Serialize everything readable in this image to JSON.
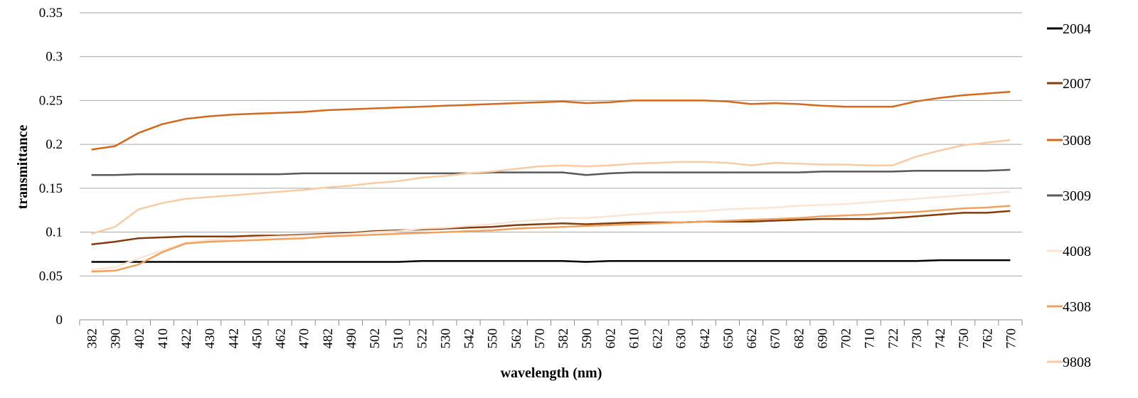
{
  "chart_data": {
    "type": "line",
    "title": "",
    "xlabel": "wavelength (nm)",
    "ylabel": "transmittance",
    "ylim": [
      0,
      0.35
    ],
    "yticks": [
      "0",
      "0.05",
      "0.1",
      "0.15",
      "0.2",
      "0.25",
      "0.3",
      "0.35"
    ],
    "grid": "horizontal",
    "legend_position": "right",
    "categories": [
      "382",
      "390",
      "402",
      "410",
      "422",
      "430",
      "442",
      "450",
      "462",
      "470",
      "482",
      "490",
      "502",
      "510",
      "522",
      "530",
      "542",
      "550",
      "562",
      "570",
      "582",
      "590",
      "602",
      "610",
      "622",
      "630",
      "642",
      "650",
      "662",
      "670",
      "682",
      "690",
      "702",
      "710",
      "722",
      "730",
      "742",
      "750",
      "762",
      "770"
    ],
    "series": [
      {
        "name": "2004",
        "color": "#000000",
        "values": [
          0.066,
          0.066,
          0.066,
          0.066,
          0.066,
          0.066,
          0.066,
          0.066,
          0.066,
          0.066,
          0.066,
          0.066,
          0.066,
          0.066,
          0.067,
          0.067,
          0.067,
          0.067,
          0.067,
          0.067,
          0.067,
          0.066,
          0.067,
          0.067,
          0.067,
          0.067,
          0.067,
          0.067,
          0.067,
          0.067,
          0.067,
          0.067,
          0.067,
          0.067,
          0.067,
          0.067,
          0.068,
          0.068,
          0.068,
          0.068
        ]
      },
      {
        "name": "2007",
        "color": "#843c0c",
        "values": [
          0.086,
          0.089,
          0.093,
          0.094,
          0.095,
          0.095,
          0.095,
          0.096,
          0.096,
          0.097,
          0.098,
          0.099,
          0.101,
          0.102,
          0.103,
          0.104,
          0.105,
          0.106,
          0.108,
          0.109,
          0.11,
          0.109,
          0.11,
          0.111,
          0.111,
          0.111,
          0.112,
          0.112,
          0.112,
          0.113,
          0.114,
          0.115,
          0.115,
          0.115,
          0.116,
          0.118,
          0.12,
          0.122,
          0.122,
          0.124
        ]
      },
      {
        "name": "3008",
        "color": "#d2691e",
        "values": [
          0.194,
          0.198,
          0.213,
          0.223,
          0.229,
          0.232,
          0.234,
          0.235,
          0.236,
          0.237,
          0.239,
          0.24,
          0.241,
          0.242,
          0.243,
          0.244,
          0.245,
          0.246,
          0.247,
          0.248,
          0.249,
          0.247,
          0.248,
          0.25,
          0.25,
          0.25,
          0.25,
          0.249,
          0.246,
          0.247,
          0.246,
          0.244,
          0.243,
          0.243,
          0.243,
          0.249,
          0.253,
          0.256,
          0.258,
          0.26
        ]
      },
      {
        "name": "3009",
        "color": "#595959",
        "values": [
          0.165,
          0.165,
          0.166,
          0.166,
          0.166,
          0.166,
          0.166,
          0.166,
          0.166,
          0.167,
          0.167,
          0.167,
          0.167,
          0.167,
          0.167,
          0.167,
          0.167,
          0.168,
          0.168,
          0.168,
          0.168,
          0.165,
          0.167,
          0.168,
          0.168,
          0.168,
          0.168,
          0.168,
          0.168,
          0.168,
          0.168,
          0.169,
          0.169,
          0.169,
          0.169,
          0.17,
          0.17,
          0.17,
          0.17,
          0.171
        ]
      },
      {
        "name": "4008",
        "color": "#fbe5d6",
        "values": [
          0.057,
          0.06,
          0.07,
          0.079,
          0.088,
          0.091,
          0.093,
          0.094,
          0.095,
          0.096,
          0.097,
          0.098,
          0.1,
          0.101,
          0.104,
          0.105,
          0.107,
          0.109,
          0.112,
          0.114,
          0.116,
          0.116,
          0.118,
          0.12,
          0.122,
          0.123,
          0.124,
          0.126,
          0.127,
          0.128,
          0.13,
          0.131,
          0.132,
          0.134,
          0.136,
          0.138,
          0.14,
          0.142,
          0.144,
          0.146
        ]
      },
      {
        "name": "4308",
        "color": "#f0a160",
        "values": [
          0.055,
          0.056,
          0.063,
          0.077,
          0.087,
          0.089,
          0.09,
          0.091,
          0.092,
          0.093,
          0.095,
          0.096,
          0.097,
          0.098,
          0.099,
          0.1,
          0.101,
          0.102,
          0.104,
          0.105,
          0.106,
          0.107,
          0.108,
          0.109,
          0.11,
          0.111,
          0.112,
          0.113,
          0.114,
          0.115,
          0.116,
          0.118,
          0.119,
          0.12,
          0.122,
          0.123,
          0.125,
          0.127,
          0.128,
          0.13
        ]
      },
      {
        "name": "9808",
        "color": "#f8cba4",
        "values": [
          0.098,
          0.106,
          0.126,
          0.133,
          0.138,
          0.14,
          0.142,
          0.144,
          0.146,
          0.148,
          0.151,
          0.153,
          0.156,
          0.158,
          0.162,
          0.164,
          0.167,
          0.169,
          0.172,
          0.175,
          0.176,
          0.175,
          0.176,
          0.178,
          0.179,
          0.18,
          0.18,
          0.179,
          0.176,
          0.179,
          0.178,
          0.177,
          0.177,
          0.176,
          0.176,
          0.186,
          0.193,
          0.199,
          0.202,
          0.205
        ]
      }
    ]
  }
}
